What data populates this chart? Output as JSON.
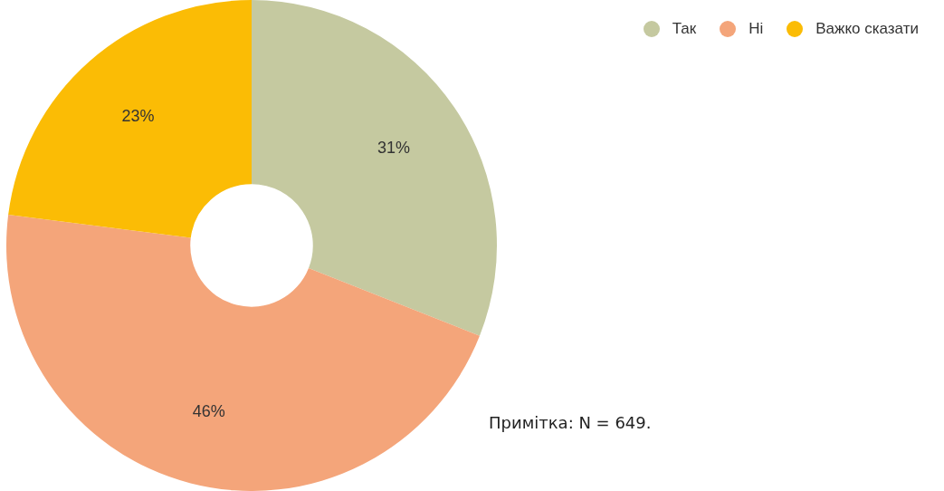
{
  "chart_data": {
    "type": "donut",
    "categories": [
      "Так",
      "Ні",
      "Важко сказати"
    ],
    "values": [
      31,
      46,
      23
    ],
    "colors": [
      "#c5c9a0",
      "#f4a57a",
      "#fbbc05"
    ],
    "value_labels": [
      "31%",
      "46%",
      "23%"
    ],
    "legend": "top right",
    "annotations": [
      "Примітка: N = 649."
    ]
  }
}
